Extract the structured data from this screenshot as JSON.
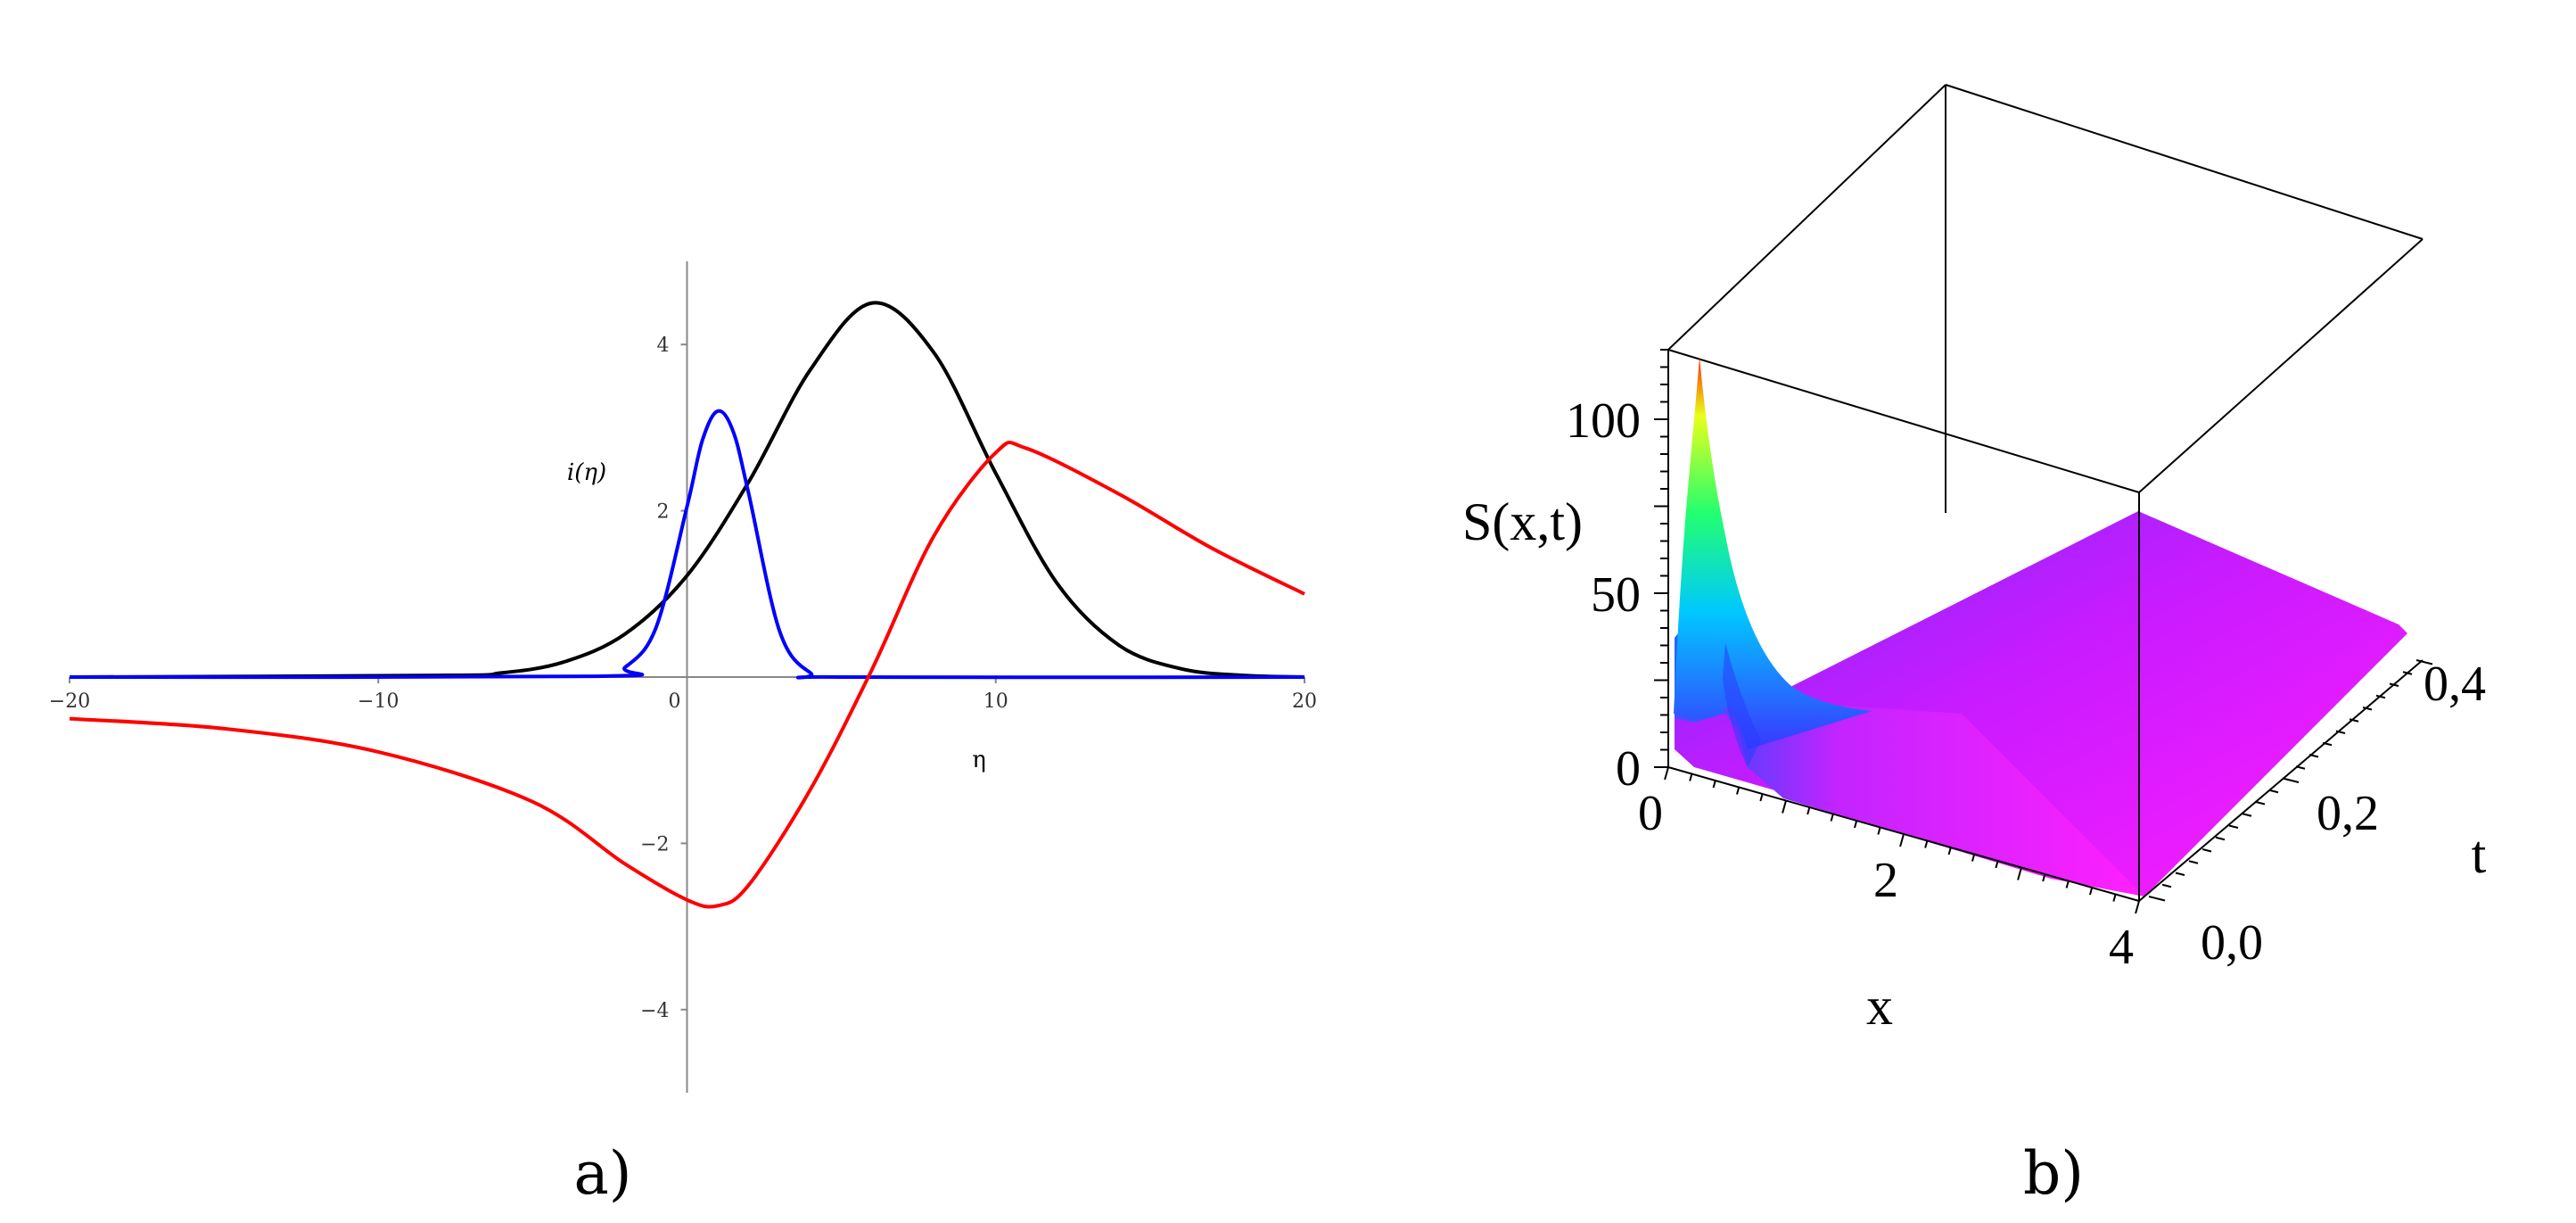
{
  "panels": {
    "a": {
      "label": "a)"
    },
    "b": {
      "label": "b)"
    }
  },
  "chart_data": [
    {
      "type": "line",
      "xlabel": "η",
      "ylabel": "i(η)",
      "xlim": [
        -20,
        20
      ],
      "ylim": [
        -5,
        5
      ],
      "x_ticks": [
        -20,
        -10,
        0,
        10,
        20
      ],
      "x_tick_labels": [
        "−20",
        "−10",
        "0",
        "10",
        "20"
      ],
      "y_ticks": [
        4,
        2,
        -2,
        -4
      ],
      "y_tick_labels": [
        "4",
        "2",
        "−2",
        "−4"
      ],
      "grid": false,
      "series": [
        {
          "color": "#000000",
          "x": [
            -20,
            -8,
            -6,
            -4,
            -2,
            0,
            2,
            4,
            6,
            8,
            10,
            12,
            14,
            16,
            18,
            20
          ],
          "y": [
            0,
            0.02,
            0.05,
            0.18,
            0.52,
            1.22,
            2.35,
            3.7,
            4.5,
            3.9,
            2.45,
            1.12,
            0.38,
            0.1,
            0.02,
            0
          ]
        },
        {
          "color": "#0000ff",
          "x": [
            -20,
            -3,
            -2,
            -1,
            0,
            0.5,
            1,
            1.5,
            2,
            3,
            4,
            5,
            20
          ],
          "y": [
            0,
            0.01,
            0.12,
            0.6,
            2.05,
            2.85,
            3.2,
            2.95,
            2.2,
            0.55,
            0.05,
            0,
            0
          ]
        },
        {
          "color": "#ff0000",
          "x": [
            -20,
            -15,
            -10,
            -5,
            -2,
            0,
            1,
            2,
            4,
            6,
            8,
            10,
            11,
            14,
            17,
            20
          ],
          "y": [
            -0.5,
            -0.62,
            -0.9,
            -1.5,
            -2.25,
            -2.68,
            -2.75,
            -2.5,
            -1.35,
            0.1,
            1.7,
            2.7,
            2.75,
            2.2,
            1.55,
            1.0
          ]
        }
      ]
    },
    {
      "type": "surface",
      "zlabel": "S(x,t)",
      "xlabel": "x",
      "ylabel": "t",
      "x_ticks": [
        0,
        2,
        4
      ],
      "x_tick_labels": [
        "0",
        "2",
        "4"
      ],
      "y_ticks": [
        0.0,
        0.2,
        0.4
      ],
      "y_tick_labels": [
        "0,0",
        "0,2",
        "0,4"
      ],
      "z_ticks": [
        0,
        50,
        100
      ],
      "z_tick_labels": [
        "0",
        "50",
        "100"
      ],
      "xlim": [
        0,
        4
      ],
      "ylim": [
        0,
        0.4
      ],
      "zlim": [
        0,
        120
      ],
      "peak": {
        "x": 0.1,
        "t": 0.0,
        "S": 120
      },
      "plateau_S": 15,
      "colors": [
        "#ff0000",
        "#ffff00",
        "#00ff00",
        "#00ffff",
        "#0000ff",
        "#ff00ff"
      ]
    }
  ]
}
